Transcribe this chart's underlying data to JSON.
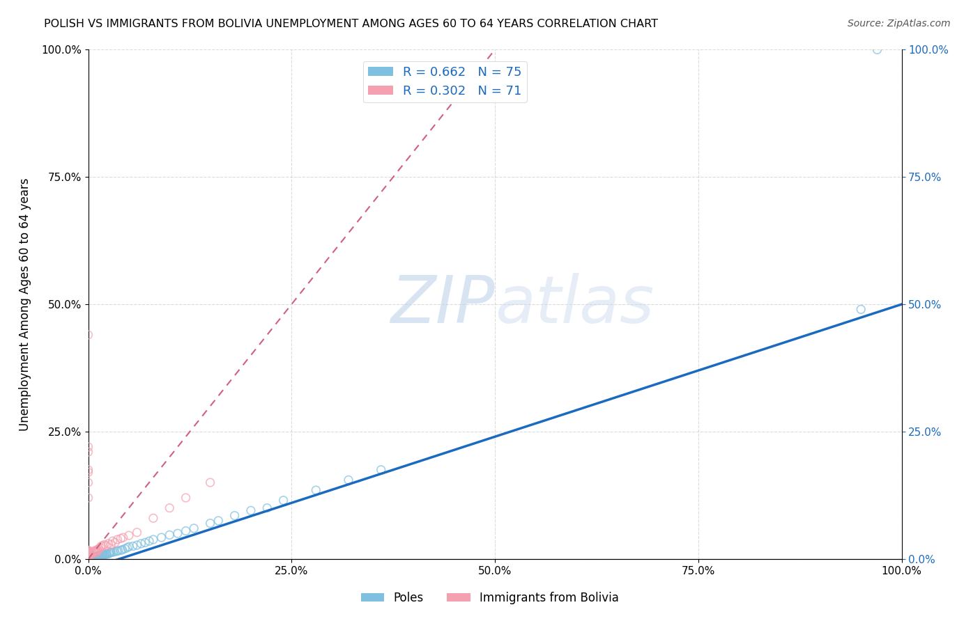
{
  "title": "POLISH VS IMMIGRANTS FROM BOLIVIA UNEMPLOYMENT AMONG AGES 60 TO 64 YEARS CORRELATION CHART",
  "source": "Source: ZipAtlas.com",
  "ylabel": "Unemployment Among Ages 60 to 64 years",
  "xlim": [
    0,
    1
  ],
  "ylim": [
    0,
    1
  ],
  "xtick_labels": [
    "0.0%",
    "25.0%",
    "50.0%",
    "75.0%",
    "100.0%"
  ],
  "xtick_vals": [
    0,
    0.25,
    0.5,
    0.75,
    1.0
  ],
  "ytick_labels": [
    "0.0%",
    "25.0%",
    "50.0%",
    "75.0%",
    "100.0%"
  ],
  "ytick_vals": [
    0,
    0.25,
    0.5,
    0.75,
    1.0
  ],
  "poles_color": "#7fbfdf",
  "bolivia_color": "#f4a0b0",
  "poles_trend_color": "#1a6bbf",
  "bolivia_trend_color": "#d06080",
  "poles_trend_x": [
    0.0,
    1.0
  ],
  "poles_trend_y": [
    -0.02,
    0.5
  ],
  "bolivia_trend_x": [
    0.0,
    0.5
  ],
  "bolivia_trend_y": [
    0.0,
    1.0
  ],
  "legend_poles_label": "R = 0.662   N = 75",
  "legend_bolivia_label": "R = 0.302   N = 71",
  "bottom_poles_label": "Poles",
  "bottom_bolivia_label": "Immigrants from Bolivia",
  "background_color": "#ffffff",
  "grid_color": "#cccccc",
  "poles_x": [
    0.001,
    0.002,
    0.002,
    0.003,
    0.003,
    0.004,
    0.004,
    0.005,
    0.005,
    0.005,
    0.006,
    0.006,
    0.007,
    0.007,
    0.007,
    0.008,
    0.008,
    0.008,
    0.009,
    0.009,
    0.01,
    0.01,
    0.01,
    0.011,
    0.011,
    0.012,
    0.012,
    0.013,
    0.013,
    0.014,
    0.015,
    0.015,
    0.016,
    0.017,
    0.018,
    0.019,
    0.02,
    0.021,
    0.022,
    0.023,
    0.025,
    0.026,
    0.027,
    0.028,
    0.03,
    0.032,
    0.035,
    0.037,
    0.04,
    0.042,
    0.045,
    0.048,
    0.05,
    0.055,
    0.06,
    0.065,
    0.07,
    0.075,
    0.08,
    0.09,
    0.1,
    0.11,
    0.12,
    0.13,
    0.15,
    0.16,
    0.18,
    0.2,
    0.22,
    0.24,
    0.28,
    0.32,
    0.36,
    0.95,
    0.97
  ],
  "poles_y": [
    0.002,
    0.002,
    0.003,
    0.002,
    0.003,
    0.003,
    0.002,
    0.002,
    0.003,
    0.004,
    0.002,
    0.003,
    0.002,
    0.003,
    0.004,
    0.002,
    0.003,
    0.004,
    0.003,
    0.004,
    0.003,
    0.004,
    0.005,
    0.004,
    0.005,
    0.004,
    0.005,
    0.005,
    0.006,
    0.005,
    0.005,
    0.007,
    0.006,
    0.007,
    0.008,
    0.008,
    0.008,
    0.009,
    0.009,
    0.01,
    0.01,
    0.012,
    0.012,
    0.013,
    0.013,
    0.014,
    0.015,
    0.016,
    0.017,
    0.018,
    0.02,
    0.022,
    0.024,
    0.025,
    0.027,
    0.03,
    0.032,
    0.035,
    0.038,
    0.042,
    0.047,
    0.05,
    0.055,
    0.06,
    0.07,
    0.075,
    0.085,
    0.095,
    0.1,
    0.115,
    0.135,
    0.155,
    0.175,
    0.49,
    1.0
  ],
  "bolivia_x": [
    0.0,
    0.0,
    0.0,
    0.0,
    0.0,
    0.0,
    0.0,
    0.0,
    0.0,
    0.0,
    0.0,
    0.0,
    0.0,
    0.0,
    0.0,
    0.0,
    0.0,
    0.0,
    0.0,
    0.0,
    0.0,
    0.0,
    0.0,
    0.0,
    0.0,
    0.0,
    0.0,
    0.0,
    0.0,
    0.0,
    0.001,
    0.001,
    0.002,
    0.002,
    0.003,
    0.004,
    0.005,
    0.006,
    0.007,
    0.008,
    0.009,
    0.01,
    0.01,
    0.011,
    0.012,
    0.013,
    0.015,
    0.016,
    0.018,
    0.02,
    0.022,
    0.025,
    0.028,
    0.03,
    0.033,
    0.036,
    0.04,
    0.043,
    0.05,
    0.06,
    0.08,
    0.1,
    0.12,
    0.15,
    0.0,
    0.0,
    0.0,
    0.0,
    0.0,
    0.0,
    0.0
  ],
  "bolivia_y": [
    0.0,
    0.0,
    0.0,
    0.0,
    0.0,
    0.0,
    0.001,
    0.001,
    0.002,
    0.002,
    0.003,
    0.003,
    0.004,
    0.005,
    0.005,
    0.006,
    0.006,
    0.007,
    0.008,
    0.008,
    0.009,
    0.01,
    0.01,
    0.011,
    0.012,
    0.013,
    0.014,
    0.015,
    0.016,
    0.017,
    0.005,
    0.01,
    0.006,
    0.012,
    0.008,
    0.01,
    0.012,
    0.013,
    0.015,
    0.016,
    0.015,
    0.012,
    0.016,
    0.018,
    0.016,
    0.02,
    0.022,
    0.025,
    0.026,
    0.028,
    0.026,
    0.03,
    0.028,
    0.035,
    0.032,
    0.038,
    0.04,
    0.042,
    0.046,
    0.052,
    0.08,
    0.1,
    0.12,
    0.15,
    0.44,
    0.21,
    0.22,
    0.175,
    0.17,
    0.15,
    0.12
  ]
}
